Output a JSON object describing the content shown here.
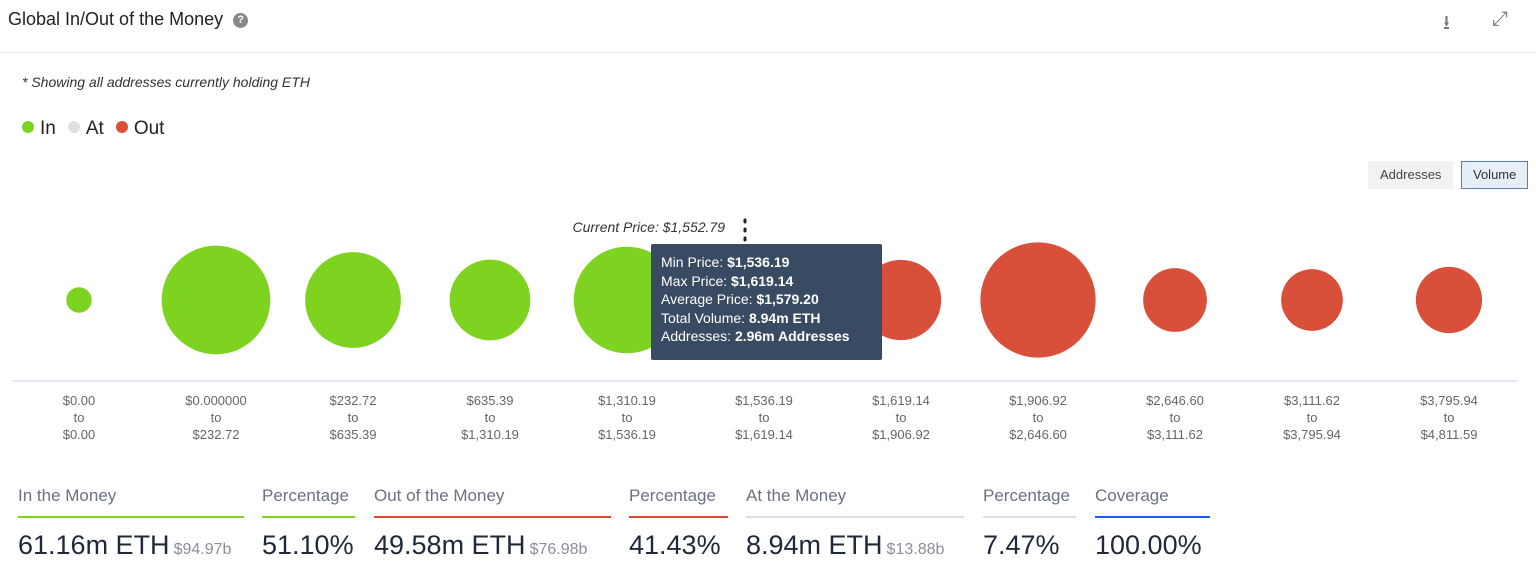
{
  "header": {
    "title": "Global In/Out of the Money",
    "help_icon": "?",
    "download_icon": "download-icon",
    "expand_icon": "expand-icon"
  },
  "note": "* Showing all addresses currently holding ETH",
  "legend": [
    {
      "label": "In",
      "color": "#7ed321"
    },
    {
      "label": "At",
      "color": "#e0e0e0"
    },
    {
      "label": "Out",
      "color": "#d9503a"
    }
  ],
  "toggle": {
    "addresses": "Addresses",
    "volume": "Volume",
    "selected": "Volume"
  },
  "chart_data": {
    "type": "bubble",
    "current_price_label": "Current Price: $1,552.79",
    "categories": [
      {
        "from": "$0.00",
        "to": "$0.00",
        "status": "In",
        "volume_m_eth": 1.0
      },
      {
        "from": "$0.000000",
        "to": "$232.72",
        "status": "In",
        "volume_m_eth": 18.3
      },
      {
        "from": "$232.72",
        "to": "$635.39",
        "status": "In",
        "volume_m_eth": 14.2
      },
      {
        "from": "$635.39",
        "to": "$1,310.19",
        "status": "In",
        "volume_m_eth": 10.1
      },
      {
        "from": "$1,310.19",
        "to": "$1,536.19",
        "status": "In",
        "volume_m_eth": 17.6
      },
      {
        "from": "$1,536.19",
        "to": "$1,619.14",
        "status": "At",
        "volume_m_eth": 8.94
      },
      {
        "from": "$1,619.14",
        "to": "$1,906.92",
        "status": "Out",
        "volume_m_eth": 10.0
      },
      {
        "from": "$1,906.92",
        "to": "$2,646.60",
        "status": "Out",
        "volume_m_eth": 20.6
      },
      {
        "from": "$2,646.60",
        "to": "$3,111.62",
        "status": "Out",
        "volume_m_eth": 6.3
      },
      {
        "from": "$3,111.62",
        "to": "$3,795.94",
        "status": "Out",
        "volume_m_eth": 5.9
      },
      {
        "from": "$3,795.94",
        "to": "$4,811.59",
        "status": "Out",
        "volume_m_eth": 6.8
      }
    ],
    "to_word": "to",
    "tooltip": {
      "min_label": "Min Price:",
      "min": "$1,536.19",
      "max_label": "Max Price:",
      "max": "$1,619.14",
      "avg_label": "Average Price:",
      "avg": "$1,579.20",
      "vol_label": "Total Volume:",
      "vol": "8.94m ETH",
      "addr_label": "Addresses:",
      "addr": "2.96m Addresses"
    }
  },
  "stats": {
    "in": {
      "label": "In the Money",
      "value": "61.16m ETH",
      "usd": "$94.97b",
      "color": "#7ed321"
    },
    "in_pct": {
      "label": "Percentage",
      "value": "51.10%"
    },
    "out": {
      "label": "Out of the Money",
      "value": "49.58m ETH",
      "usd": "$76.98b",
      "color": "#e0462f"
    },
    "out_pct": {
      "label": "Percentage",
      "value": "41.43%"
    },
    "at": {
      "label": "At the Money",
      "value": "8.94m ETH",
      "usd": "$13.88b",
      "color": "#dddddd"
    },
    "at_pct": {
      "label": "Percentage",
      "value": "7.47%"
    },
    "coverage": {
      "label": "Coverage",
      "value": "100.00%",
      "color": "#1a5cff"
    }
  }
}
